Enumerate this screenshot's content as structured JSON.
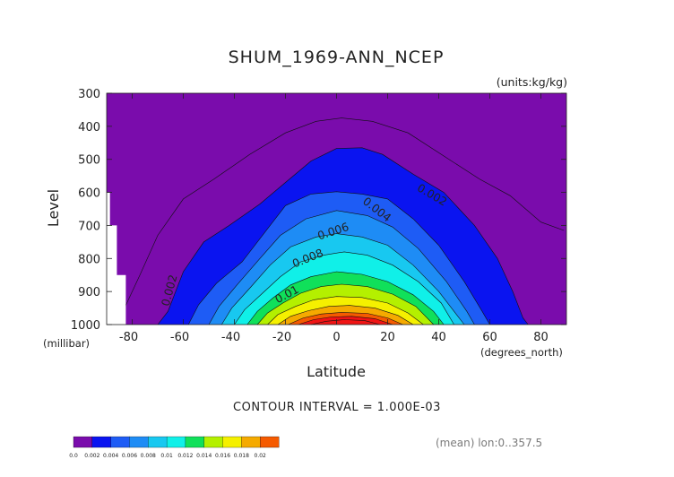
{
  "chart_data": {
    "type": "contour",
    "title": "SHUM_1969-ANN_NCEP",
    "units": "(units:kg/kg)",
    "ylabel": "Level",
    "y_unit_label": "(millibar)",
    "xlabel": "Latitude",
    "x_unit_label": "(degrees_north)",
    "xlim": [
      -90,
      90
    ],
    "ylim": [
      1000,
      300
    ],
    "y_axis_inverted": true,
    "y_ticks": [
      "300",
      "400",
      "500",
      "600",
      "700",
      "800",
      "900",
      "1000"
    ],
    "x_ticks": [
      "-80",
      "-60",
      "-40",
      "-20",
      "0",
      "20",
      "40",
      "60",
      "80"
    ],
    "contour_interval_text": "CONTOUR INTERVAL = 1.000E-03",
    "meta_text": "(mean) lon:0..357.5",
    "colorbar": {
      "labels": [
        "0.0",
        "0.002",
        "0.004",
        "0.006",
        "0.008",
        "0.01",
        "0.012",
        "0.014",
        "0.016",
        "0.018",
        "0.02"
      ],
      "colors": [
        "#7a0cac",
        "#0a14f0",
        "#1e5cf5",
        "#1e8cf5",
        "#18c8f0",
        "#10f0e8",
        "#10e05a",
        "#b4f000",
        "#f5f000",
        "#f5aa00",
        "#f55a00",
        "#f01414"
      ]
    },
    "contour_labels": [
      "0.002",
      "0.004",
      "0.006",
      "0.008",
      "0.01",
      "0.002",
      "0.002"
    ],
    "missing_data_region": "southern high latitudes near surface (white)",
    "fields": [
      {
        "min_value": 0.002,
        "profile": [
          [
            -70,
            1000
          ],
          [
            -66,
            960
          ],
          [
            -60,
            840
          ],
          [
            -52,
            750
          ],
          [
            -42,
            700
          ],
          [
            -30,
            635
          ],
          [
            -20,
            570
          ],
          [
            -10,
            505
          ],
          [
            0,
            467
          ],
          [
            10,
            465
          ],
          [
            18,
            485
          ],
          [
            30,
            545
          ],
          [
            42,
            600
          ],
          [
            54,
            700
          ],
          [
            63,
            800
          ],
          [
            69,
            900
          ],
          [
            73,
            980
          ],
          [
            75,
            1000
          ]
        ]
      },
      {
        "min_value": 0.003,
        "profile": [
          [
            -58,
            1000
          ],
          [
            -54,
            940
          ],
          [
            -47,
            875
          ],
          [
            -37,
            810
          ],
          [
            -28,
            720
          ],
          [
            -20,
            640
          ],
          [
            -10,
            605
          ],
          [
            0,
            598
          ],
          [
            10,
            605
          ],
          [
            20,
            620
          ],
          [
            30,
            680
          ],
          [
            40,
            760
          ],
          [
            50,
            870
          ],
          [
            57,
            960
          ],
          [
            60,
            1000
          ]
        ]
      },
      {
        "min_value": 0.004,
        "profile": [
          [
            -50,
            1000
          ],
          [
            -46,
            945
          ],
          [
            -39,
            880
          ],
          [
            -30,
            800
          ],
          [
            -22,
            730
          ],
          [
            -12,
            680
          ],
          [
            0,
            655
          ],
          [
            12,
            670
          ],
          [
            22,
            705
          ],
          [
            32,
            770
          ],
          [
            43,
            870
          ],
          [
            51,
            960
          ],
          [
            54,
            1000
          ]
        ]
      },
      {
        "min_value": 0.005,
        "profile": [
          [
            -45,
            1000
          ],
          [
            -41,
            950
          ],
          [
            -34,
            890
          ],
          [
            -26,
            820
          ],
          [
            -18,
            765
          ],
          [
            -8,
            735
          ],
          [
            0,
            725
          ],
          [
            10,
            735
          ],
          [
            20,
            760
          ],
          [
            30,
            820
          ],
          [
            40,
            900
          ],
          [
            47,
            970
          ],
          [
            50,
            1000
          ]
        ]
      },
      {
        "min_value": 0.006,
        "profile": [
          [
            -40,
            1000
          ],
          [
            -36,
            955
          ],
          [
            -29,
            905
          ],
          [
            -22,
            855
          ],
          [
            -14,
            810
          ],
          [
            -5,
            790
          ],
          [
            3,
            780
          ],
          [
            12,
            790
          ],
          [
            22,
            820
          ],
          [
            32,
            870
          ],
          [
            41,
            935
          ],
          [
            46,
            1000
          ]
        ]
      },
      {
        "min_value": 0.007,
        "profile": [
          [
            -35,
            1000
          ],
          [
            -31,
            960
          ],
          [
            -25,
            920
          ],
          [
            -18,
            880
          ],
          [
            -10,
            855
          ],
          [
            0,
            840
          ],
          [
            10,
            848
          ],
          [
            20,
            870
          ],
          [
            30,
            910
          ],
          [
            38,
            960
          ],
          [
            42,
            1000
          ]
        ]
      },
      {
        "min_value": 0.008,
        "profile": [
          [
            -31,
            1000
          ],
          [
            -27,
            965
          ],
          [
            -21,
            935
          ],
          [
            -14,
            905
          ],
          [
            -6,
            885
          ],
          [
            2,
            878
          ],
          [
            12,
            885
          ],
          [
            22,
            908
          ],
          [
            31,
            945
          ],
          [
            38,
            1000
          ]
        ]
      },
      {
        "min_value": 0.009,
        "profile": [
          [
            -27,
            1000
          ],
          [
            -23,
            970
          ],
          [
            -16,
            945
          ],
          [
            -9,
            925
          ],
          [
            0,
            915
          ],
          [
            10,
            918
          ],
          [
            20,
            935
          ],
          [
            28,
            965
          ],
          [
            34,
            1000
          ]
        ]
      },
      {
        "min_value": 0.01,
        "profile": [
          [
            -23,
            1000
          ],
          [
            -18,
            975
          ],
          [
            -11,
            958
          ],
          [
            -3,
            945
          ],
          [
            5,
            942
          ],
          [
            15,
            950
          ],
          [
            24,
            972
          ],
          [
            30,
            1000
          ]
        ]
      },
      {
        "min_value": 0.011,
        "profile": [
          [
            -19,
            1000
          ],
          [
            -13,
            980
          ],
          [
            -6,
            968
          ],
          [
            2,
            963
          ],
          [
            12,
            966
          ],
          [
            20,
            980
          ],
          [
            26,
            1000
          ]
        ]
      },
      {
        "min_value": 0.012,
        "profile": [
          [
            -15,
            1000
          ],
          [
            -9,
            985
          ],
          [
            -2,
            977
          ],
          [
            6,
            975
          ],
          [
            15,
            982
          ],
          [
            22,
            1000
          ]
        ]
      },
      {
        "min_value": 0.013,
        "profile": [
          [
            -10,
            1000
          ],
          [
            -4,
            990
          ],
          [
            3,
            985
          ],
          [
            11,
            988
          ],
          [
            17,
            1000
          ]
        ]
      }
    ],
    "outer_contour_lines": [
      {
        "value": 0.001,
        "profile": [
          [
            -86,
            1000
          ],
          [
            -83,
            950
          ],
          [
            -77,
            850
          ],
          [
            -70,
            730
          ],
          [
            -60,
            620
          ],
          [
            -48,
            560
          ],
          [
            -34,
            485
          ],
          [
            -20,
            420
          ],
          [
            -8,
            385
          ],
          [
            2,
            375
          ],
          [
            14,
            385
          ],
          [
            28,
            420
          ],
          [
            42,
            490
          ],
          [
            56,
            560
          ],
          [
            68,
            610
          ],
          [
            80,
            690
          ],
          [
            89,
            715
          ]
        ]
      }
    ]
  }
}
